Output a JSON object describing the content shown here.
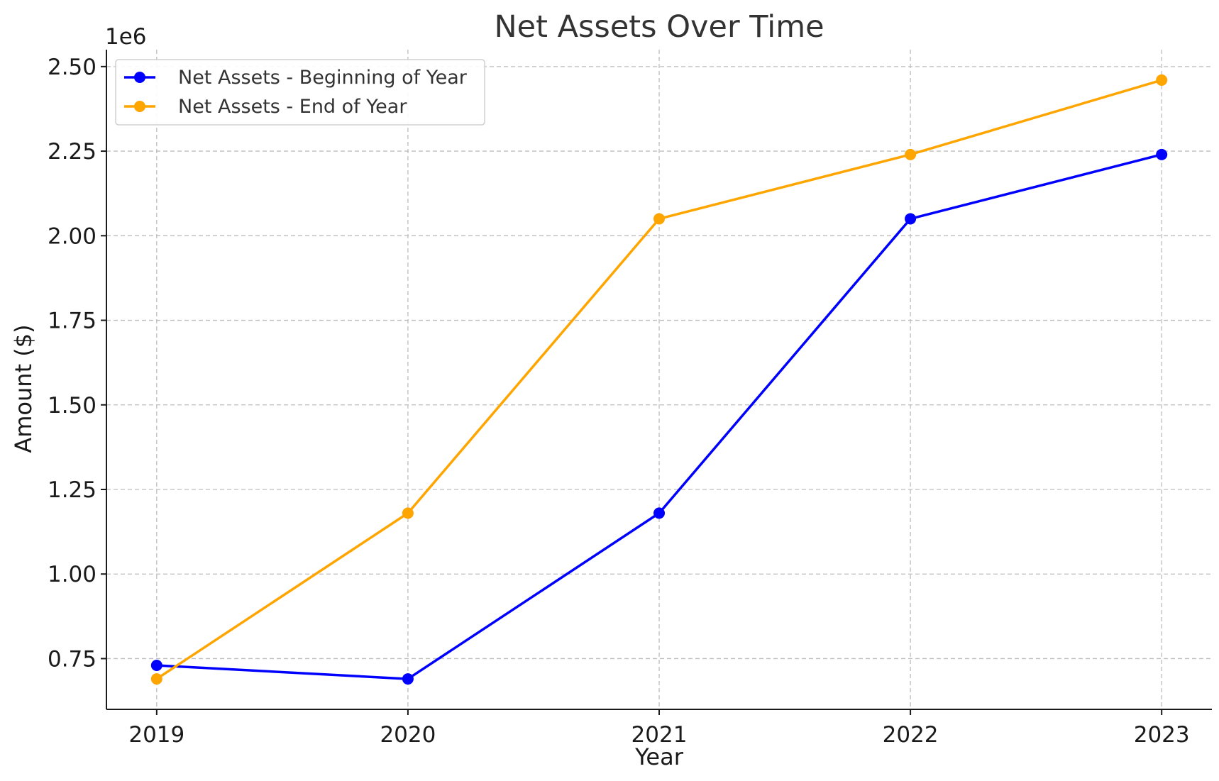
{
  "chart_data": {
    "type": "line",
    "title": "Net Assets Over Time",
    "xlabel": "Year",
    "ylabel": "Amount ($)",
    "y_offset_label": "1e6",
    "x": [
      2019,
      2020,
      2021,
      2022,
      2023
    ],
    "x_tick_labels": [
      "2019",
      "2020",
      "2021",
      "2022",
      "2023"
    ],
    "y_ticks": [
      0.75,
      1.0,
      1.25,
      1.5,
      1.75,
      2.0,
      2.25,
      2.5
    ],
    "y_tick_labels": [
      "0.75",
      "1.00",
      "1.25",
      "1.50",
      "1.75",
      "2.00",
      "2.25",
      "2.50"
    ],
    "ylim": [
      0.6,
      2.55
    ],
    "xlim": [
      2018.8,
      2023.2
    ],
    "grid": true,
    "legend_position": "top-left",
    "series": [
      {
        "name": "Net Assets - Beginning of Year",
        "color": "#0000ff",
        "values": [
          0.73,
          0.69,
          1.18,
          2.05,
          2.24
        ]
      },
      {
        "name": "Net Assets - End of Year",
        "color": "#ffa500",
        "values": [
          0.69,
          1.18,
          2.05,
          2.24,
          2.46
        ]
      }
    ]
  }
}
